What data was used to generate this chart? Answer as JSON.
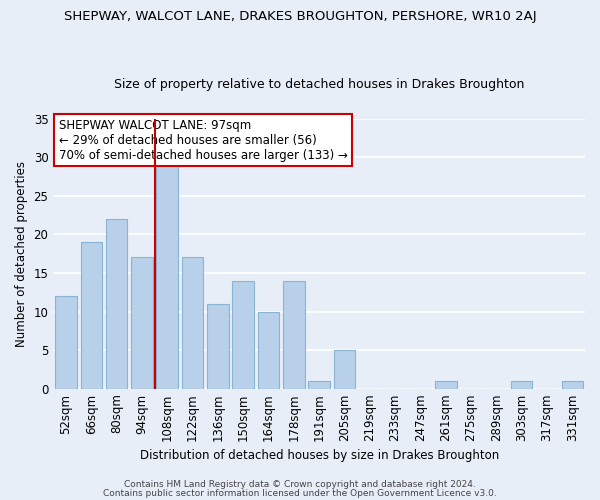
{
  "title": "SHEPWAY, WALCOT LANE, DRAKES BROUGHTON, PERSHORE, WR10 2AJ",
  "subtitle": "Size of property relative to detached houses in Drakes Broughton",
  "xlabel": "Distribution of detached houses by size in Drakes Broughton",
  "ylabel": "Number of detached properties",
  "bin_labels": [
    "52sqm",
    "66sqm",
    "80sqm",
    "94sqm",
    "108sqm",
    "122sqm",
    "136sqm",
    "150sqm",
    "164sqm",
    "178sqm",
    "191sqm",
    "205sqm",
    "219sqm",
    "233sqm",
    "247sqm",
    "261sqm",
    "275sqm",
    "289sqm",
    "303sqm",
    "317sqm",
    "331sqm"
  ],
  "bar_values": [
    12,
    19,
    22,
    17,
    29,
    17,
    11,
    14,
    10,
    14,
    1,
    5,
    0,
    0,
    0,
    1,
    0,
    0,
    1,
    0,
    1
  ],
  "bar_color": "#b8d0ea",
  "bar_edge_color": "#8ab4d4",
  "vline_x": 3.5,
  "vline_color": "#cc0000",
  "ylim": [
    0,
    35
  ],
  "yticks": [
    0,
    5,
    10,
    15,
    20,
    25,
    30,
    35
  ],
  "annotation_title": "SHEPWAY WALCOT LANE: 97sqm",
  "annotation_line1": "← 29% of detached houses are smaller (56)",
  "annotation_line2": "70% of semi-detached houses are larger (133) →",
  "annotation_box_color": "#ffffff",
  "annotation_box_edge": "#cc0000",
  "footer1": "Contains HM Land Registry data © Crown copyright and database right 2024.",
  "footer2": "Contains public sector information licensed under the Open Government Licence v3.0.",
  "bg_color": "#e8eef8",
  "grid_color": "#ffffff",
  "title_fontsize": 9.5,
  "subtitle_fontsize": 9.0,
  "ann_fontsize": 8.5,
  "footer_fontsize": 6.5
}
